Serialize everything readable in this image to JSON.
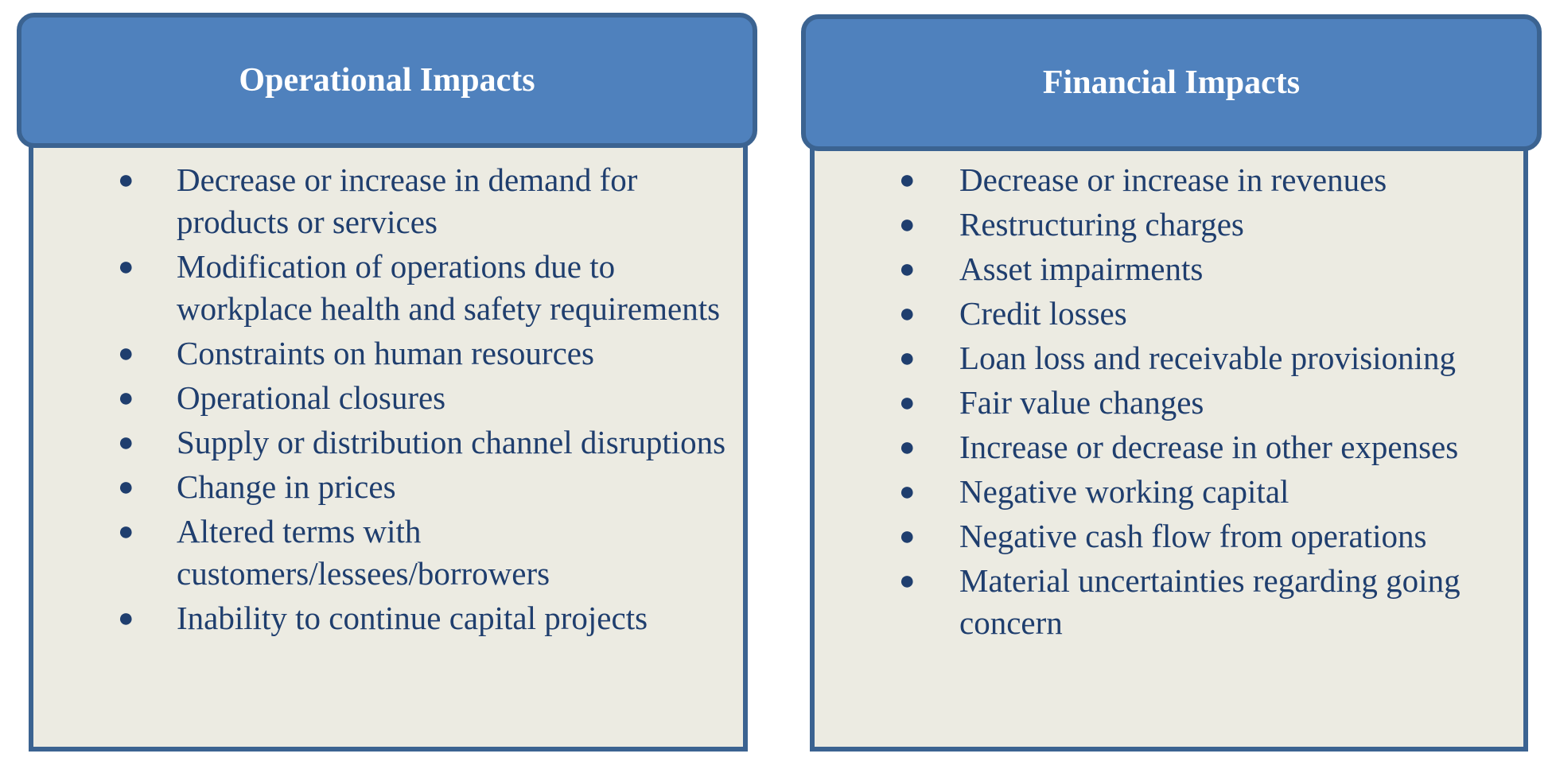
{
  "colors": {
    "header_fill": "#4f81bd",
    "border": "#3b6391",
    "body_fill": "#ecebe2",
    "body_text": "#1f3e6e",
    "header_text": "#ffffff"
  },
  "operational": {
    "title": "Operational Impacts",
    "items": [
      "Decrease or increase in demand for products or services",
      "Modification of operations due to workplace health and safety requirements",
      "Constraints on human resources",
      "Operational closures",
      "Supply or distribution channel disruptions",
      "Change in prices",
      "Altered terms with customers/lessees/borrowers",
      "Inability to continue capital projects"
    ]
  },
  "financial": {
    "title": "Financial Impacts",
    "items": [
      "Decrease or increase in revenues",
      "Restructuring charges",
      "Asset impairments",
      "Credit losses",
      "Loan loss and receivable provisioning",
      "Fair value changes",
      "Increase or decrease in other expenses",
      "Negative working capital",
      "Negative cash flow from operations",
      "Material uncertainties regarding going concern"
    ]
  }
}
